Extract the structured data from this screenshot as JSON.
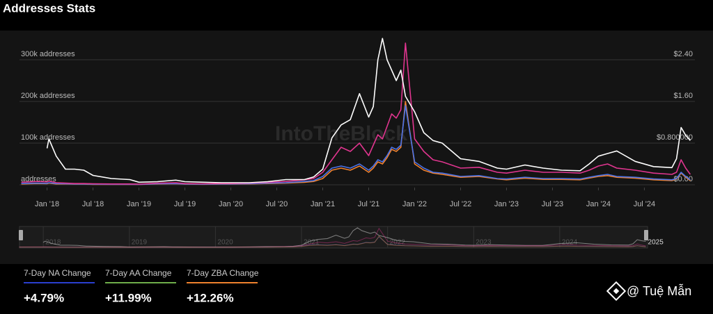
{
  "title": "Addresses Stats",
  "watermark": "IntoTheBlock",
  "chart_data": {
    "type": "line",
    "x": [
      2017.72,
      2017.9,
      2018.0,
      2018.02,
      2018.1,
      2018.2,
      2018.3,
      2018.4,
      2018.5,
      2018.7,
      2018.9,
      2019.0,
      2019.2,
      2019.4,
      2019.5,
      2019.7,
      2019.9,
      2020.0,
      2020.2,
      2020.4,
      2020.6,
      2020.8,
      2020.9,
      2021.0,
      2021.1,
      2021.2,
      2021.3,
      2021.4,
      2021.5,
      2021.55,
      2021.6,
      2021.65,
      2021.7,
      2021.75,
      2021.8,
      2021.85,
      2021.9,
      2022.0,
      2022.1,
      2022.2,
      2022.3,
      2022.5,
      2022.7,
      2022.9,
      2023.0,
      2023.2,
      2023.4,
      2023.6,
      2023.8,
      2023.9,
      2024.0,
      2024.1,
      2024.2,
      2024.4,
      2024.6,
      2024.8,
      2024.85,
      2024.9,
      2024.95,
      2025.0
    ],
    "series": [
      {
        "color": "#ffffff",
        "axis": "y2",
        "values": [
          null,
          null,
          0.7,
          0.88,
          0.55,
          0.3,
          0.3,
          0.28,
          0.18,
          0.12,
          0.1,
          0.05,
          0.06,
          0.09,
          0.06,
          0.05,
          0.04,
          0.04,
          0.04,
          0.06,
          0.1,
          0.1,
          0.15,
          0.3,
          0.9,
          1.15,
          1.25,
          1.75,
          1.3,
          1.5,
          2.4,
          2.81,
          2.4,
          2.2,
          2.0,
          2.2,
          1.7,
          1.4,
          1.0,
          0.85,
          0.8,
          0.5,
          0.45,
          0.32,
          0.3,
          0.38,
          0.32,
          0.28,
          0.27,
          0.4,
          0.55,
          0.6,
          0.65,
          0.45,
          0.35,
          0.33,
          0.5,
          1.1,
          0.95,
          0.85
        ]
      },
      {
        "color": "#e0358f",
        "values": [
          6000,
          8000,
          7000,
          9000,
          5000,
          4000,
          3000,
          3000,
          2500,
          2000,
          2000,
          1500,
          4000,
          5000,
          3000,
          2500,
          3000,
          3000,
          4000,
          6000,
          8000,
          12000,
          15000,
          30000,
          60000,
          90000,
          80000,
          100000,
          70000,
          95000,
          120000,
          110000,
          140000,
          170000,
          160000,
          180000,
          340000,
          110000,
          80000,
          60000,
          55000,
          40000,
          42000,
          30000,
          28000,
          35000,
          30000,
          30000,
          28000,
          35000,
          45000,
          50000,
          40000,
          35000,
          28000,
          25000,
          30000,
          60000,
          40000,
          25000
        ]
      },
      {
        "color": "#4a72e8",
        "values": [
          3000,
          4000,
          3500,
          5000,
          3000,
          2500,
          2000,
          2000,
          1500,
          1200,
          1200,
          1000,
          2500,
          3000,
          2000,
          1500,
          2000,
          2000,
          2500,
          4000,
          5000,
          8000,
          10000,
          20000,
          40000,
          45000,
          40000,
          50000,
          35000,
          45000,
          60000,
          55000,
          70000,
          90000,
          85000,
          95000,
          190000,
          55000,
          40000,
          30000,
          28000,
          20000,
          22000,
          15000,
          14000,
          18000,
          15000,
          15000,
          14000,
          18000,
          22000,
          25000,
          20000,
          18000,
          14000,
          12000,
          15000,
          30000,
          20000,
          12000
        ]
      },
      {
        "color": "#f0822e",
        "values": [
          2000,
          3000,
          2500,
          4000,
          2000,
          2000,
          1500,
          1500,
          1000,
          1000,
          1000,
          800,
          2000,
          2500,
          1500,
          1200,
          1500,
          1500,
          2000,
          3000,
          4000,
          6000,
          8000,
          15000,
          35000,
          40000,
          35000,
          45000,
          30000,
          40000,
          55000,
          50000,
          65000,
          85000,
          80000,
          90000,
          200000,
          50000,
          35000,
          28000,
          25000,
          18000,
          20000,
          14000,
          12000,
          16000,
          13000,
          13000,
          12000,
          16000,
          20000,
          22000,
          18000,
          16000,
          12000,
          10000,
          14000,
          28000,
          18000,
          10000
        ]
      }
    ],
    "xlim": [
      2017.7,
      2025.05
    ],
    "xticks": [
      {
        "value": 2018,
        "label": "Jan '18"
      },
      {
        "value": 2018.5,
        "label": "Jul '18"
      },
      {
        "value": 2019,
        "label": "Jan '19"
      },
      {
        "value": 2019.5,
        "label": "Jul '19"
      },
      {
        "value": 2020,
        "label": "Jan '20"
      },
      {
        "value": 2020.5,
        "label": "Jul '20"
      },
      {
        "value": 2021,
        "label": "Jan '21"
      },
      {
        "value": 2021.5,
        "label": "Jul '21"
      },
      {
        "value": 2022,
        "label": "Jan '22"
      },
      {
        "value": 2022.5,
        "label": "Jul '22"
      },
      {
        "value": 2023,
        "label": "Jan '23"
      },
      {
        "value": 2023.5,
        "label": "Jul '23"
      },
      {
        "value": 2024,
        "label": "Jan '24"
      },
      {
        "value": 2024.5,
        "label": "Jul '24"
      }
    ],
    "ylim": [
      0,
      350000
    ],
    "yticks": [
      {
        "value": 0,
        "label": "addresses"
      },
      {
        "value": 100000,
        "label": "100k addresses"
      },
      {
        "value": 200000,
        "label": "200k addresses"
      },
      {
        "value": 300000,
        "label": "300k addresses"
      }
    ],
    "y2lim": [
      0,
      2.8
    ],
    "y2ticks": [
      {
        "value": 0,
        "label": "$0.00"
      },
      {
        "value": 0.8,
        "label": "$0.800000"
      },
      {
        "value": 1.6,
        "label": "$1.60"
      },
      {
        "value": 2.4,
        "label": "$2.40"
      }
    ],
    "grid": true,
    "navigator": {
      "xlim": [
        2017.74,
        2025.02
      ],
      "xticks": [
        2018,
        2019,
        2020,
        2021,
        2022,
        2023,
        2024,
        2025
      ]
    }
  },
  "stats": [
    {
      "label": "7-Day NA Change",
      "value": "+4.79%",
      "color": "#2a3fd0"
    },
    {
      "label": "7-Day AA Change",
      "value": "+11.99%",
      "color": "#6fae4a"
    },
    {
      "label": "7-Day ZBA Change",
      "value": "+12.26%",
      "color": "#f0822e"
    }
  ],
  "credit": "@ Tuệ Mẫn"
}
